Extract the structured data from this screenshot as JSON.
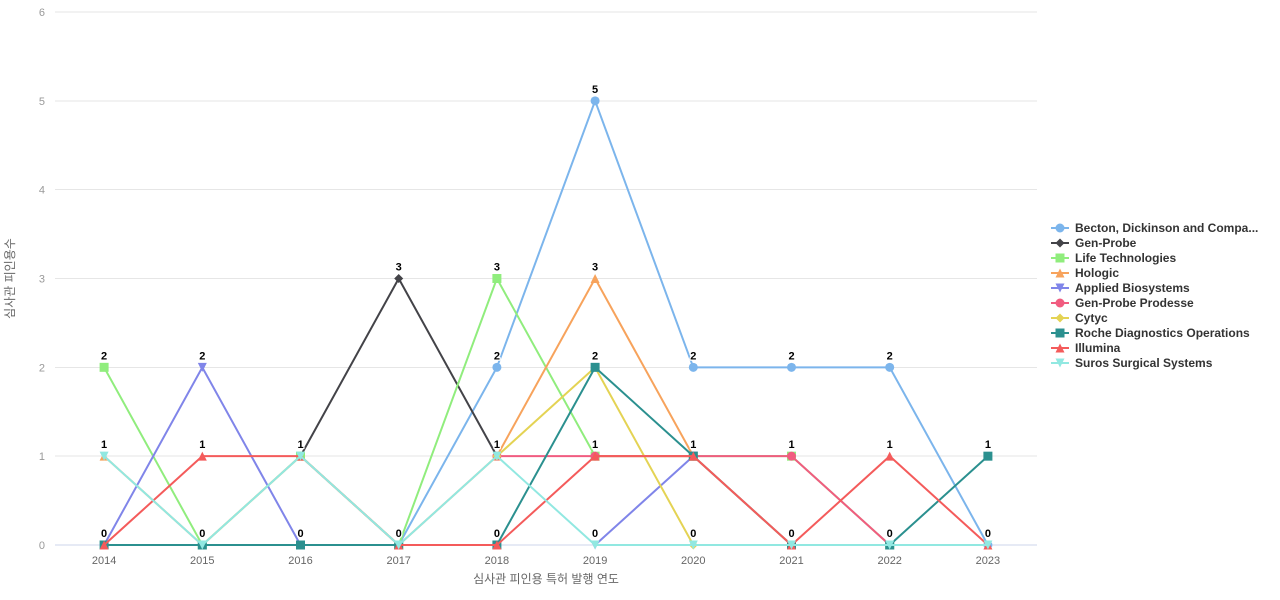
{
  "chart_data": {
    "type": "line",
    "title": "",
    "xlabel": "심사관 피인용 특허 발행 연도",
    "ylabel": "심사관 피인용수",
    "categories": [
      "2014",
      "2015",
      "2016",
      "2017",
      "2018",
      "2019",
      "2020",
      "2021",
      "2022",
      "2023"
    ],
    "ylim": [
      0,
      6
    ],
    "y_ticks": [
      0,
      1,
      2,
      3,
      4,
      5,
      6
    ],
    "grid": true,
    "legend_position": "right",
    "data_labels": true,
    "series": [
      {
        "name": "Becton, Dickinson and Compa...",
        "color": "#7cb5ec",
        "symbol": "circle",
        "values": [
          null,
          null,
          null,
          0,
          2,
          5,
          2,
          2,
          2,
          0
        ]
      },
      {
        "name": "Gen-Probe",
        "color": "#434348",
        "symbol": "diamond",
        "values": [
          null,
          null,
          1,
          3,
          1,
          null,
          null,
          null,
          null,
          null
        ]
      },
      {
        "name": "Life Technologies",
        "color": "#90ed7d",
        "symbol": "square",
        "values": [
          2,
          0,
          1,
          0,
          3,
          1,
          1,
          1,
          0,
          null
        ]
      },
      {
        "name": "Hologic",
        "color": "#f7a35c",
        "symbol": "triangle",
        "values": [
          1,
          0,
          1,
          0,
          1,
          3,
          1,
          0,
          null,
          null
        ]
      },
      {
        "name": "Applied Biosystems",
        "color": "#8085e9",
        "symbol": "triangle-down",
        "values": [
          0,
          2,
          0,
          null,
          null,
          0,
          1,
          null,
          null,
          null
        ]
      },
      {
        "name": "Gen-Probe Prodesse",
        "color": "#f15c80",
        "symbol": "circle",
        "values": [
          null,
          null,
          null,
          null,
          1,
          1,
          1,
          1,
          0,
          null
        ]
      },
      {
        "name": "Cytyc",
        "color": "#e4d354",
        "symbol": "diamond",
        "values": [
          null,
          null,
          null,
          null,
          1,
          2,
          0,
          null,
          null,
          null
        ]
      },
      {
        "name": "Roche Diagnostics Operations",
        "color": "#2b908f",
        "symbol": "square",
        "values": [
          0,
          0,
          0,
          0,
          0,
          2,
          1,
          0,
          0,
          1
        ]
      },
      {
        "name": "Illumina",
        "color": "#f45b5b",
        "symbol": "triangle",
        "values": [
          0,
          1,
          1,
          0,
          0,
          1,
          1,
          0,
          1,
          0
        ]
      },
      {
        "name": "Suros Surgical Systems",
        "color": "#91e8e1",
        "symbol": "triangle-down",
        "values": [
          1,
          0,
          1,
          0,
          1,
          0,
          0,
          0,
          0,
          0
        ]
      }
    ]
  }
}
